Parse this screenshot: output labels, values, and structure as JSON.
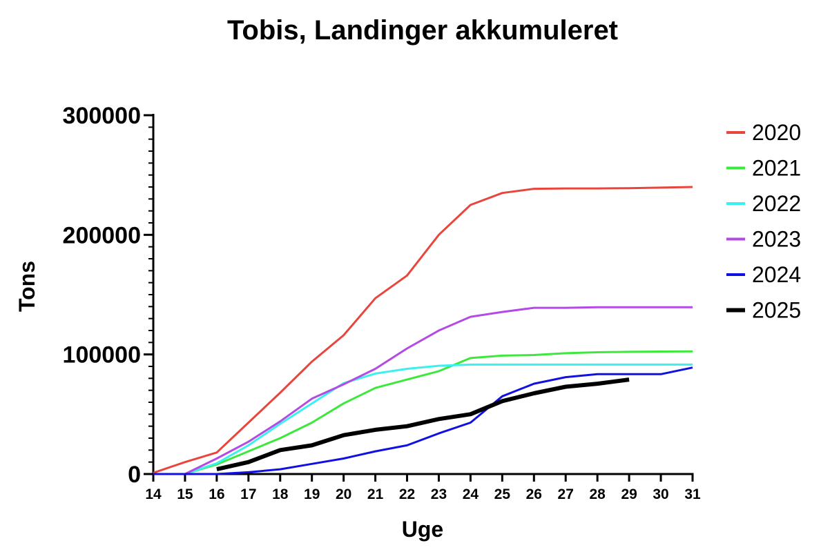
{
  "chart_data": {
    "type": "line",
    "title": "Tobis, Landinger akkumuleret",
    "xlabel": "Uge",
    "ylabel": "Tons",
    "xlim": [
      14,
      31
    ],
    "ylim": [
      0,
      300000
    ],
    "x_ticks": [
      "14",
      "15",
      "16",
      "17",
      "18",
      "19",
      "20",
      "21",
      "22",
      "23",
      "24",
      "25",
      "26",
      "27",
      "28",
      "29",
      "30",
      "31"
    ],
    "y_ticks": [
      "0",
      "100000",
      "200000",
      "300000"
    ],
    "legend_position": "right",
    "grid": false,
    "series": [
      {
        "name": "2020",
        "color": "#e8453c",
        "width": 3,
        "x": [
          14,
          15,
          16,
          17,
          18,
          19,
          20,
          21,
          22,
          23,
          24,
          25,
          26,
          27,
          28,
          29,
          30,
          31
        ],
        "y": [
          1000,
          10000,
          18000,
          43000,
          68000,
          94000,
          116000,
          147000,
          166000,
          200000,
          225000,
          235000,
          238500,
          238800,
          238800,
          239000,
          239500,
          240000
        ]
      },
      {
        "name": "2021",
        "color": "#3ce83c",
        "width": 3,
        "x": [
          14,
          15,
          16,
          17,
          18,
          19,
          20,
          21,
          22,
          23,
          24,
          25,
          26,
          27,
          28,
          29,
          30,
          31
        ],
        "y": [
          0,
          0,
          8000,
          19000,
          30000,
          43000,
          59000,
          72000,
          79000,
          86000,
          97000,
          99000,
          99500,
          101000,
          101800,
          102200,
          102400,
          102500
        ]
      },
      {
        "name": "2022",
        "color": "#3cf0f0",
        "width": 3,
        "x": [
          14,
          15,
          16,
          17,
          18,
          19,
          20,
          21,
          22,
          23,
          24,
          25,
          26,
          27,
          28,
          29,
          30,
          31
        ],
        "y": [
          0,
          0,
          9000,
          24000,
          42000,
          59000,
          76000,
          84000,
          88000,
          90500,
          91500,
          91500,
          91500,
          91500,
          91500,
          91500,
          91500,
          91500
        ]
      },
      {
        "name": "2023",
        "color": "#b44ae6",
        "width": 3,
        "x": [
          14,
          15,
          16,
          17,
          18,
          19,
          20,
          21,
          22,
          23,
          24,
          25,
          26,
          27,
          28,
          29,
          30,
          31
        ],
        "y": [
          0,
          0,
          13000,
          27000,
          44000,
          63000,
          75000,
          88000,
          105000,
          120000,
          131500,
          135500,
          139000,
          139000,
          139500,
          139500,
          139500,
          139500
        ]
      },
      {
        "name": "2024",
        "color": "#1010e0",
        "width": 3,
        "x": [
          14,
          15,
          16,
          17,
          18,
          19,
          20,
          21,
          22,
          23,
          24,
          25,
          26,
          27,
          28,
          29,
          30,
          31
        ],
        "y": [
          0,
          0,
          0,
          1500,
          4000,
          8500,
          13000,
          19000,
          24000,
          34000,
          43000,
          65000,
          75500,
          81000,
          83500,
          83500,
          83500,
          89000
        ]
      },
      {
        "name": "2025",
        "color": "#000000",
        "width": 6,
        "x": [
          16,
          17,
          18,
          19,
          20,
          21,
          22,
          23,
          24,
          25,
          26,
          27,
          28,
          29
        ],
        "y": [
          4000,
          10000,
          20000,
          24000,
          32500,
          37000,
          40000,
          46000,
          50000,
          61000,
          67500,
          73000,
          75500,
          79000
        ]
      }
    ]
  }
}
